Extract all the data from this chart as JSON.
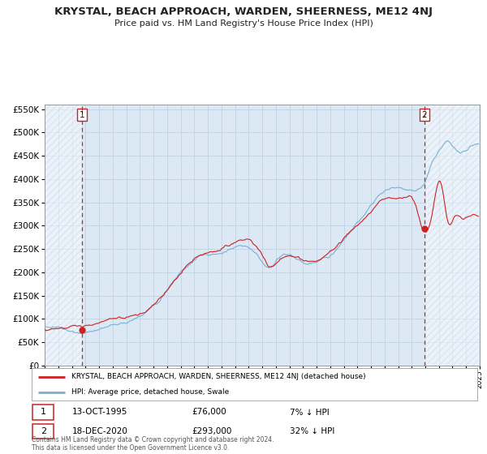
{
  "title": "KRYSTAL, BEACH APPROACH, WARDEN, SHEERNESS, ME12 4NJ",
  "subtitle": "Price paid vs. HM Land Registry's House Price Index (HPI)",
  "red_label": "KRYSTAL, BEACH APPROACH, WARDEN, SHEERNESS, ME12 4NJ (detached house)",
  "blue_label": "HPI: Average price, detached house, Swale",
  "marker1_date": "13-OCT-1995",
  "marker1_price": 76000,
  "marker1_hpi_pct": "7% ↓ HPI",
  "marker2_date": "18-DEC-2020",
  "marker2_price": 293000,
  "marker2_hpi_pct": "32% ↓ HPI",
  "footer": "Contains HM Land Registry data © Crown copyright and database right 2024.\nThis data is licensed under the Open Government Licence v3.0.",
  "red_color": "#cc2222",
  "blue_color": "#7ab0d4",
  "bg_color": "#dce9f5",
  "hatch_color": "#c8d8e8",
  "grid_color": "#b8cfe0",
  "ylim": [
    0,
    560000
  ],
  "yticks": [
    0,
    50000,
    100000,
    150000,
    200000,
    250000,
    300000,
    350000,
    400000,
    450000,
    500000,
    550000
  ],
  "start_year": 1993,
  "end_year": 2025
}
